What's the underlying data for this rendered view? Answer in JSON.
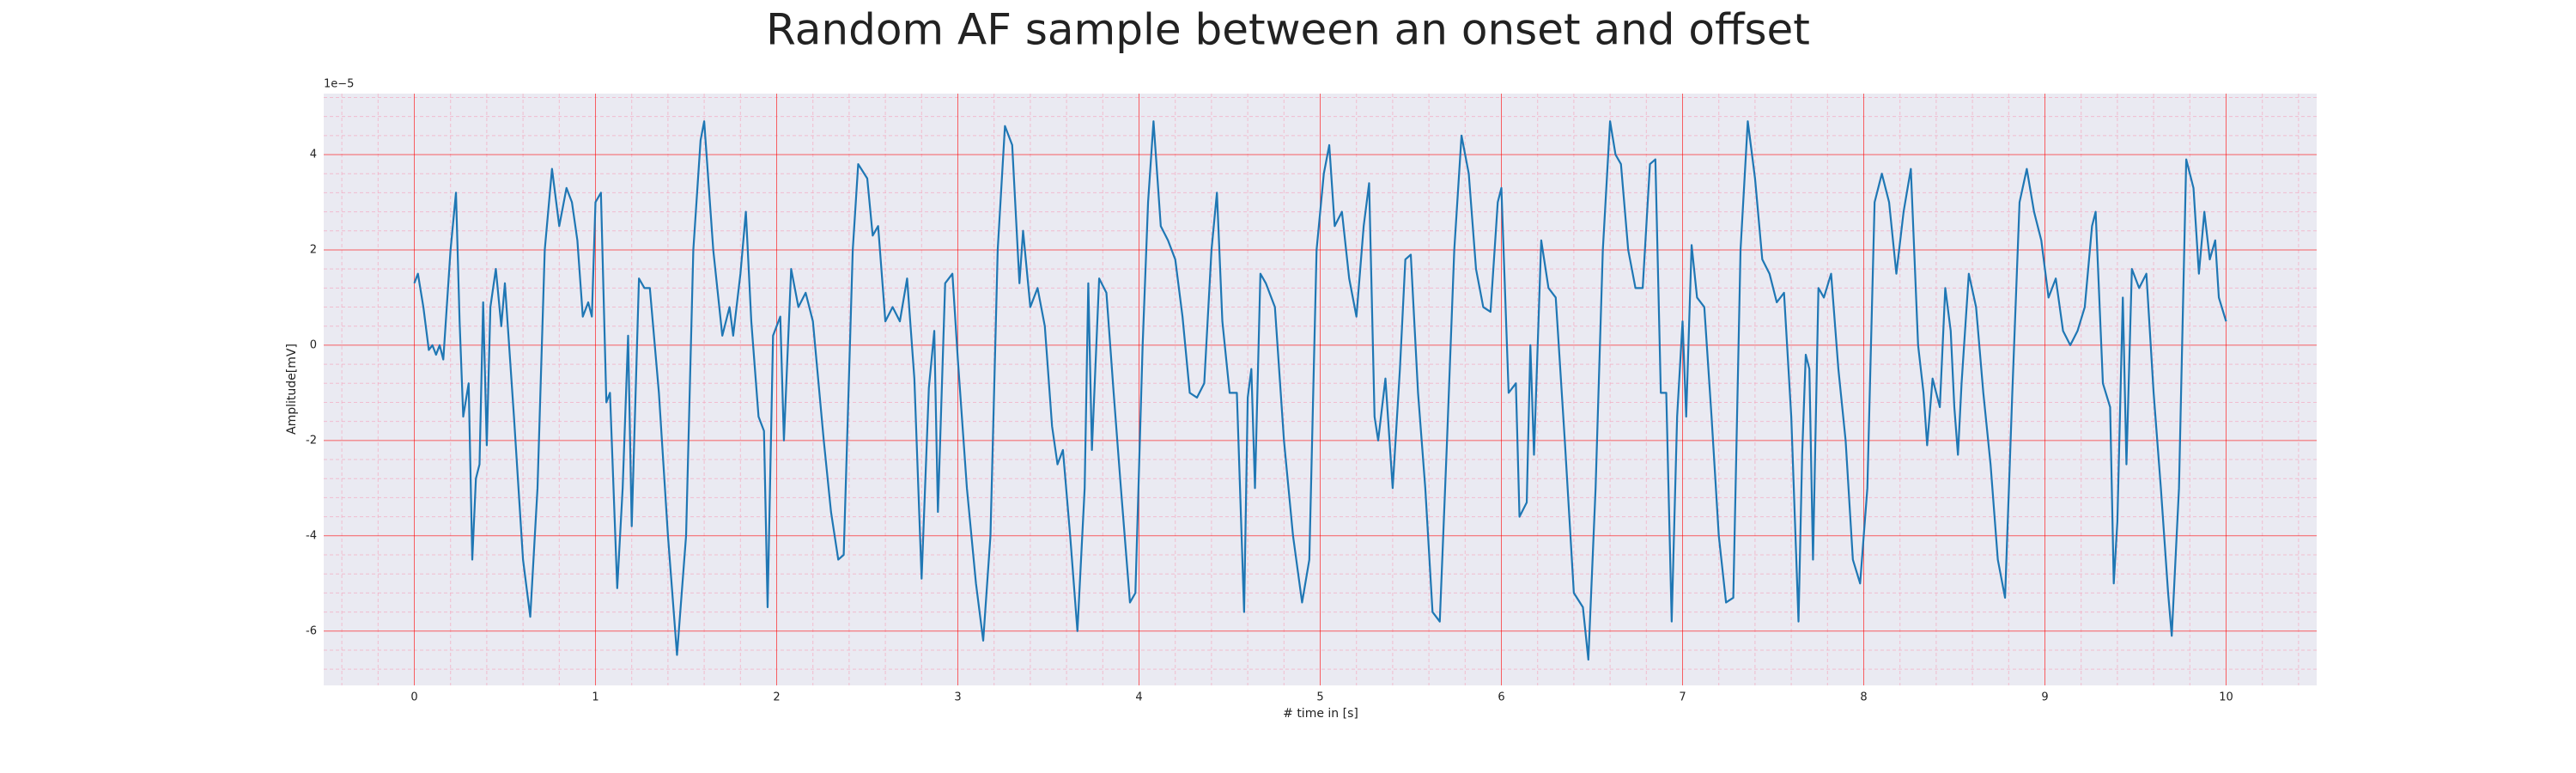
{
  "chart_data": {
    "type": "line",
    "title": "Random AF sample between an onset and offset",
    "xlabel": "# time in [s]",
    "ylabel": "Amplitude[mV]",
    "offset_label": "1e−5",
    "xlim": [
      -0.5,
      10.5
    ],
    "ylim": [
      -7.14,
      5.28
    ],
    "xticks": [
      0,
      1,
      2,
      3,
      4,
      5,
      6,
      7,
      8,
      9,
      10
    ],
    "yticks": [
      -6,
      -4,
      -2,
      0,
      2,
      4
    ],
    "xminorticks": [
      -0.4,
      -0.2,
      0.2,
      0.4,
      0.6,
      0.8,
      1.2,
      1.4,
      1.6,
      1.8,
      2.2,
      2.4,
      2.6,
      2.8,
      3.2,
      3.4,
      3.6,
      3.8,
      4.2,
      4.4,
      4.6,
      4.8,
      5.2,
      5.4,
      5.6,
      5.8,
      6.2,
      6.4,
      6.6,
      6.8,
      7.2,
      7.4,
      7.6,
      7.8,
      8.2,
      8.4,
      8.6,
      8.8,
      9.2,
      9.4,
      9.6,
      9.8,
      10.2,
      10.4
    ],
    "yminorticks": [
      -6.8,
      -6.4,
      -5.6,
      -5.2,
      -4.8,
      -4.4,
      -3.6,
      -3.2,
      -2.8,
      -2.4,
      -1.6,
      -1.2,
      -0.8,
      -0.4,
      0.4,
      0.8,
      1.2,
      1.6,
      2.4,
      2.8,
      3.2,
      3.6,
      4.4,
      4.8,
      5.2
    ],
    "grid": true,
    "minor_grid": true,
    "grid_color": "#ff0000",
    "minor_grid_color": "#f4a9c0",
    "background": "#eaeaf2",
    "x": [
      0,
      0.02,
      0.05,
      0.08,
      0.1,
      0.12,
      0.14,
      0.16,
      0.2,
      0.23,
      0.25,
      0.27,
      0.3,
      0.32,
      0.34,
      0.36,
      0.38,
      0.4,
      0.42,
      0.45,
      0.48,
      0.5,
      0.55,
      0.6,
      0.64,
      0.68,
      0.72,
      0.76,
      0.8,
      0.84,
      0.87,
      0.9,
      0.93,
      0.96,
      0.98,
      1.0,
      1.03,
      1.06,
      1.08,
      1.12,
      1.15,
      1.18,
      1.2,
      1.24,
      1.27,
      1.3,
      1.35,
      1.4,
      1.45,
      1.5,
      1.54,
      1.58,
      1.6,
      1.65,
      1.7,
      1.74,
      1.76,
      1.8,
      1.83,
      1.86,
      1.9,
      1.93,
      1.95,
      1.98,
      2.02,
      2.04,
      2.08,
      2.12,
      2.16,
      2.2,
      2.26,
      2.3,
      2.34,
      2.37,
      2.42,
      2.45,
      2.5,
      2.53,
      2.56,
      2.6,
      2.64,
      2.68,
      2.72,
      2.76,
      2.8,
      2.84,
      2.87,
      2.89,
      2.93,
      2.97,
      3.0,
      3.05,
      3.1,
      3.14,
      3.18,
      3.22,
      3.26,
      3.3,
      3.34,
      3.36,
      3.4,
      3.44,
      3.48,
      3.52,
      3.55,
      3.58,
      3.62,
      3.66,
      3.7,
      3.72,
      3.74,
      3.78,
      3.82,
      3.86,
      3.9,
      3.95,
      3.98,
      4.02,
      4.05,
      4.08,
      4.12,
      4.16,
      4.2,
      4.24,
      4.28,
      4.32,
      4.36,
      4.4,
      4.43,
      4.46,
      4.5,
      4.54,
      4.58,
      4.6,
      4.62,
      4.64,
      4.67,
      4.7,
      4.75,
      4.8,
      4.85,
      4.9,
      4.94,
      4.98,
      5.02,
      5.05,
      5.08,
      5.12,
      5.16,
      5.2,
      5.24,
      5.27,
      5.3,
      5.32,
      5.36,
      5.4,
      5.44,
      5.47,
      5.5,
      5.54,
      5.58,
      5.62,
      5.66,
      5.7,
      5.74,
      5.78,
      5.82,
      5.86,
      5.9,
      5.94,
      5.98,
      6.0,
      6.04,
      6.08,
      6.1,
      6.14,
      6.16,
      6.18,
      6.22,
      6.26,
      6.3,
      6.35,
      6.4,
      6.45,
      6.48,
      6.52,
      6.56,
      6.6,
      6.63,
      6.66,
      6.7,
      6.74,
      6.78,
      6.82,
      6.85,
      6.88,
      6.91,
      6.94,
      6.97,
      7.0,
      7.02,
      7.05,
      7.08,
      7.12,
      7.16,
      7.2,
      7.24,
      7.28,
      7.32,
      7.36,
      7.4,
      7.44,
      7.48,
      7.52,
      7.56,
      7.6,
      7.64,
      7.66,
      7.68,
      7.7,
      7.72,
      7.75,
      7.78,
      7.82,
      7.86,
      7.9,
      7.94,
      7.98,
      8.02,
      8.06,
      8.1,
      8.14,
      8.18,
      8.22,
      8.26,
      8.3,
      8.33,
      8.35,
      8.38,
      8.42,
      8.45,
      8.48,
      8.5,
      8.52,
      8.54,
      8.58,
      8.62,
      8.66,
      8.7,
      8.74,
      8.78,
      8.82,
      8.86,
      8.9,
      8.94,
      8.98,
      9.02,
      9.06,
      9.1,
      9.14,
      9.18,
      9.22,
      9.26,
      9.28,
      9.32,
      9.36,
      9.38,
      9.4,
      9.43,
      9.45,
      9.48,
      9.52,
      9.56,
      9.6,
      9.64,
      9.68,
      9.7,
      9.74,
      9.78,
      9.82,
      9.85,
      9.88,
      9.91,
      9.94,
      9.96,
      10.0
    ],
    "series": [
      {
        "color": "#1f77b4",
        "values": [
          1.3,
          1.5,
          0.8,
          -0.1,
          0,
          -0.2,
          0,
          -0.3,
          2,
          3.2,
          0.5,
          -1.5,
          -0.8,
          -4.5,
          -2.8,
          -2.5,
          0.9,
          -2.1,
          0.8,
          1.6,
          0.4,
          1.3,
          -1.5,
          -4.5,
          -5.7,
          -3,
          2,
          3.7,
          2.5,
          3.3,
          3,
          2.2,
          0.6,
          0.9,
          0.6,
          3,
          3.2,
          -1.2,
          -1,
          -5.1,
          -3,
          0.2,
          -3.8,
          1.4,
          1.2,
          1.2,
          -1,
          -4,
          -6.5,
          -4,
          2,
          4.3,
          4.7,
          2,
          0.2,
          0.8,
          0.2,
          1.5,
          2.8,
          0.5,
          -1.5,
          -1.8,
          -5.5,
          0.2,
          0.6,
          -2,
          1.6,
          0.8,
          1.1,
          0.5,
          -2,
          -3.5,
          -4.5,
          -4.4,
          2,
          3.8,
          3.5,
          2.3,
          2.5,
          0.5,
          0.8,
          0.5,
          1.4,
          -0.7,
          -4.9,
          -0.9,
          0.3,
          -3.5,
          1.3,
          1.5,
          -0.3,
          -3,
          -5,
          -6.2,
          -4,
          2,
          4.6,
          4.2,
          1.3,
          2.4,
          0.8,
          1.2,
          0.4,
          -1.7,
          -2.5,
          -2.2,
          -4,
          -6,
          -3,
          1.3,
          -2.2,
          1.4,
          1.1,
          -1,
          -3,
          -5.4,
          -5.2,
          0,
          3,
          4.7,
          2.5,
          2.2,
          1.8,
          0.6,
          -1,
          -1.1,
          -0.8,
          2,
          3.2,
          0.5,
          -1,
          -1,
          -5.6,
          -1.1,
          -0.5,
          -3,
          1.5,
          1.3,
          0.8,
          -2,
          -4,
          -5.4,
          -4.5,
          2,
          3.6,
          4.2,
          2.5,
          2.8,
          1.4,
          0.6,
          2.5,
          3.4,
          -1.5,
          -2,
          -0.7,
          -3,
          -0.5,
          1.8,
          1.9,
          -1,
          -3,
          -5.6,
          -5.8,
          -2,
          2,
          4.4,
          3.6,
          1.6,
          0.8,
          0.7,
          3,
          3.3,
          -1,
          -0.8,
          -3.6,
          -3.3,
          0,
          -2.3,
          2.2,
          1.2,
          1,
          -2,
          -5.2,
          -5.5,
          -6.6,
          -3,
          2,
          4.7,
          4,
          3.8,
          2,
          1.2,
          1.2,
          3.8,
          3.9,
          -1,
          -1,
          -5.8,
          -1.5,
          0.5,
          -1.5,
          2.1,
          1,
          0.8,
          -1.5,
          -4,
          -5.4,
          -5.3,
          2,
          4.7,
          3.5,
          1.8,
          1.5,
          0.9,
          1.1,
          -1.5,
          -5.8,
          -2.3,
          -0.2,
          -0.5,
          -4.5,
          1.2,
          1,
          1.5,
          -0.5,
          -2,
          -4.5,
          -5,
          -3,
          3,
          3.6,
          3,
          1.5,
          2.8,
          3.7,
          0,
          -1,
          -2.1,
          -0.7,
          -1.3,
          1.2,
          0.3,
          -1.3,
          -2.3,
          -0.8,
          1.5,
          0.8,
          -1,
          -2.5,
          -4.5,
          -5.3,
          -1,
          3,
          3.7,
          2.8,
          2.2,
          1,
          1.4,
          0.3,
          0,
          0.3,
          0.8,
          2.5,
          2.8,
          -0.8,
          -1.3,
          -5,
          -3.7,
          1,
          -2.5,
          1.6,
          1.2,
          1.5,
          -1,
          -3,
          -5.2,
          -6.1,
          -3,
          3.9,
          3.3,
          1.5,
          2.8,
          1.8,
          2.2,
          1,
          0.5
        ]
      }
    ]
  }
}
